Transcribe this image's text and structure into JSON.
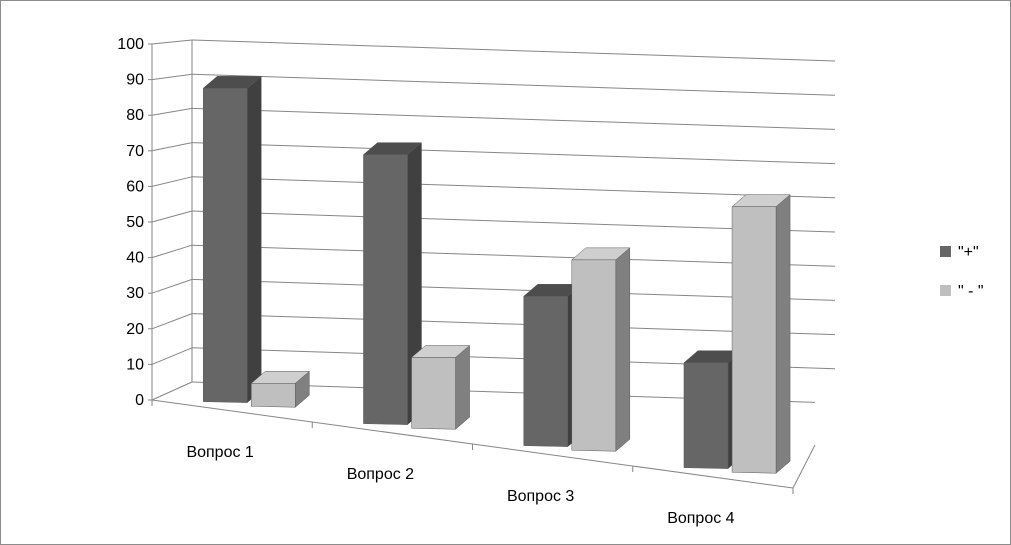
{
  "chart_data": {
    "type": "bar",
    "style": "3d-clustered-column",
    "categories": [
      "Вопрос 1",
      "Вопрос 2",
      "Вопрос 3",
      "Вопрос 4"
    ],
    "series": [
      {
        "name": "\"+\"",
        "values": [
          92,
          79,
          44,
          31
        ],
        "color": "#666666",
        "side_color": "#404040",
        "top_color": "#4d4d4d"
      },
      {
        "name": "\" - \"",
        "values": [
          7,
          21,
          56,
          78
        ],
        "color": "#bfbfbf",
        "side_color": "#808080",
        "top_color": "#cfcfcf"
      }
    ],
    "title": "",
    "xlabel": "",
    "ylabel": "",
    "ylim": [
      0,
      100
    ],
    "yticks": [
      "0",
      "10",
      "20",
      "30",
      "40",
      "50",
      "60",
      "70",
      "80",
      "90",
      "100"
    ],
    "grid": true,
    "legend_position": "right"
  }
}
